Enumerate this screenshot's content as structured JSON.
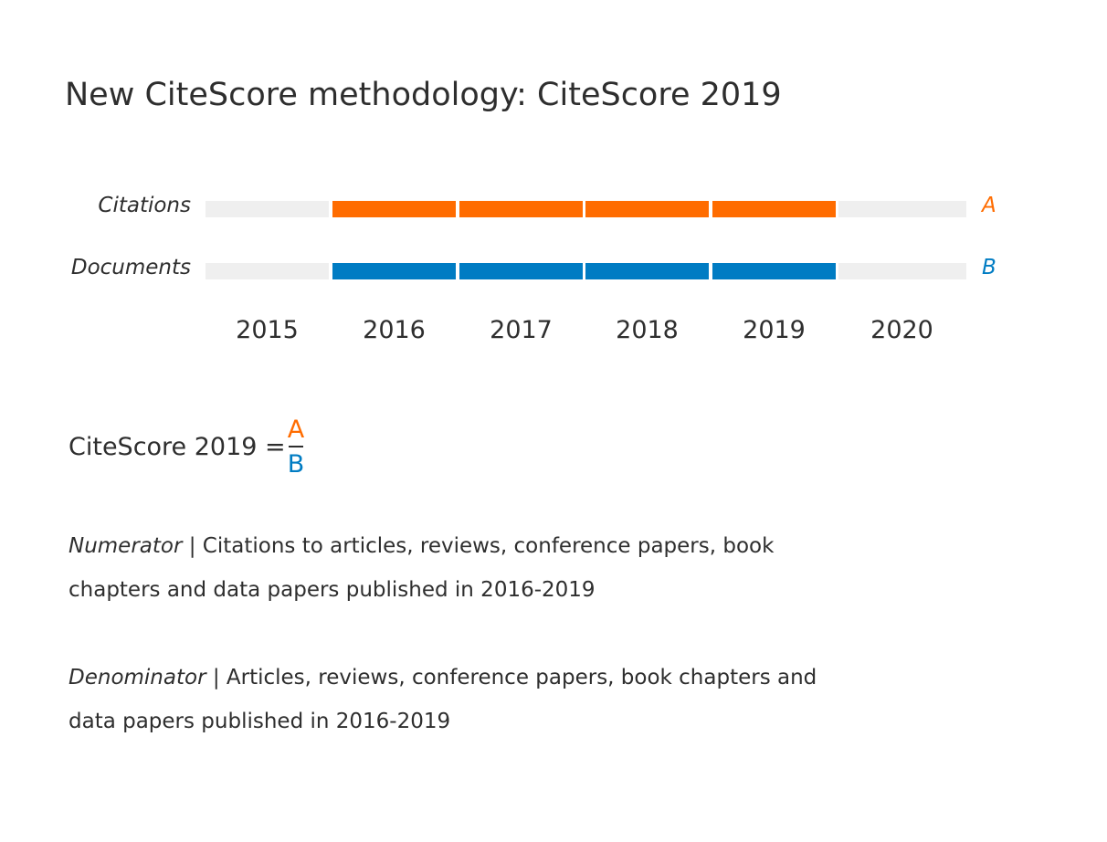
{
  "title": "New CiteScore methodology: CiteScore 2019",
  "rows": [
    {
      "label": "Citations",
      "end_letter": "A",
      "color": "#ff6c00"
    },
    {
      "label": "Documents",
      "end_letter": "B",
      "color": "#007cc3"
    }
  ],
  "years": [
    "2015",
    "2016",
    "2017",
    "2018",
    "2019",
    "2020"
  ],
  "active_years": [
    "2016",
    "2017",
    "2018",
    "2019"
  ],
  "formula": {
    "label": "CiteScore 2019 =",
    "numerator": "A",
    "denominator": "B"
  },
  "numerator_desc": {
    "term": "Numerator",
    "text": " | Citations to articles, reviews, conference papers, book chapters and data papers published in 2016-2019"
  },
  "denominator_desc": {
    "term": "Denominator",
    "text": " | Articles, reviews, conference papers, book chapters and data papers published in 2016-2019"
  },
  "colors": {
    "inactive": "#efefef",
    "citations": "#ff6c00",
    "documents": "#007cc3"
  }
}
